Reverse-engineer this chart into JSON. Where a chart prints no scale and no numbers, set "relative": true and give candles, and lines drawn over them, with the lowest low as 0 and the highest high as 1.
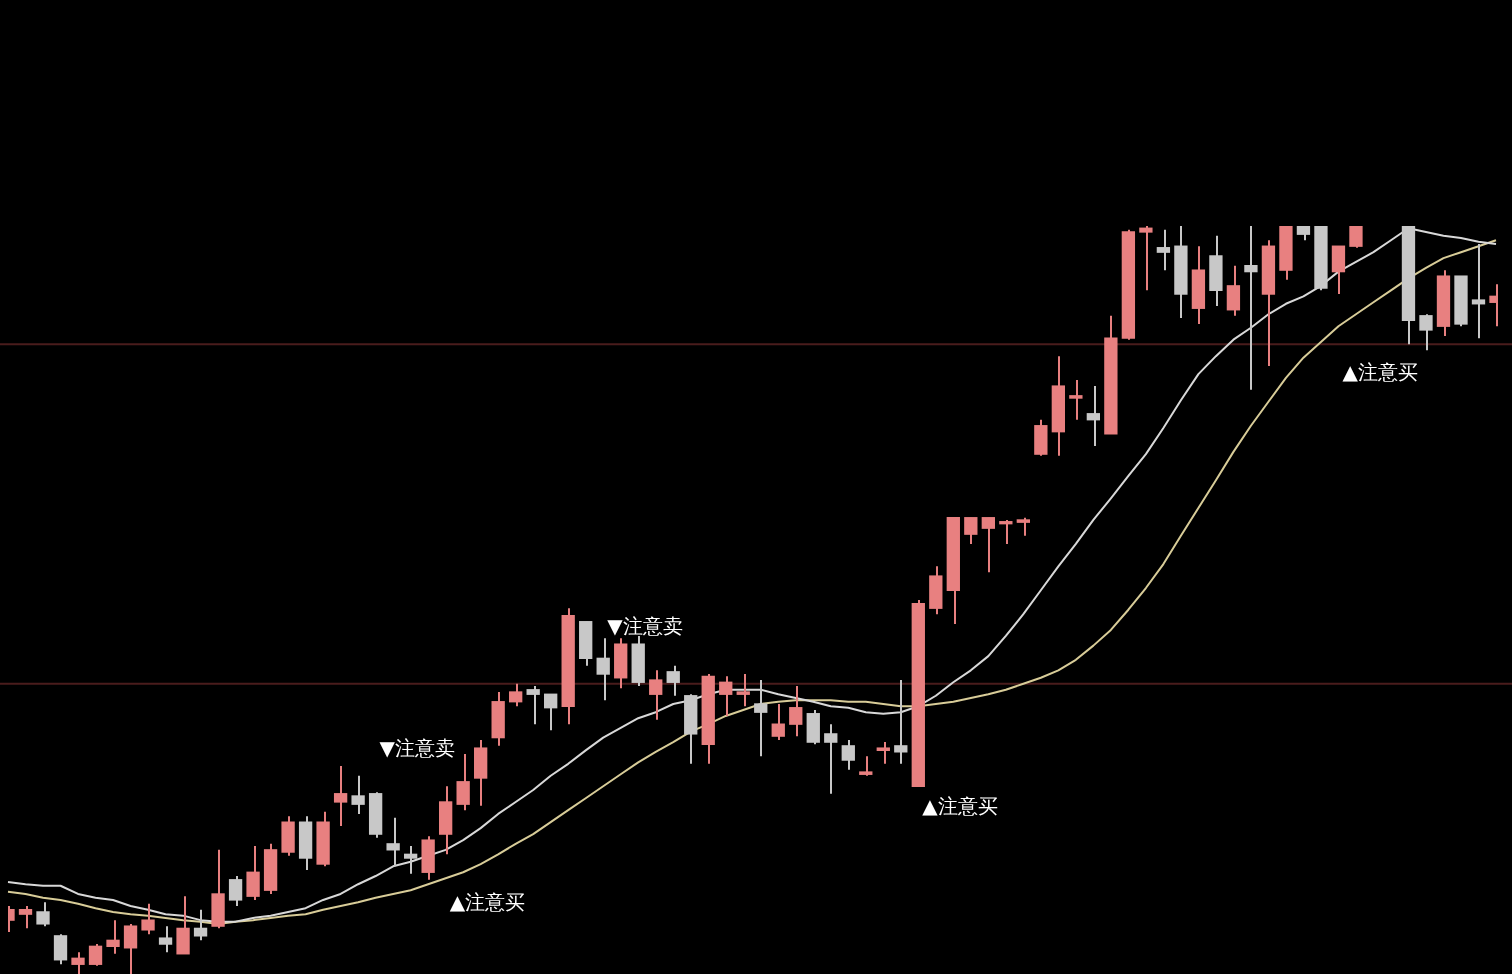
{
  "chart_data": {
    "type": "candlestick",
    "relative": true,
    "categories": [
      null,
      null,
      null,
      null,
      null,
      null,
      null,
      null,
      null,
      null,
      null,
      null,
      null,
      null,
      null,
      null,
      null,
      null,
      null,
      null,
      null,
      null,
      null,
      null,
      null,
      null,
      null,
      null,
      null,
      null,
      null,
      null,
      null,
      null,
      null,
      null,
      null,
      null,
      null,
      null,
      null,
      null,
      null,
      null,
      null,
      null,
      null,
      null,
      null,
      null,
      null,
      null,
      null,
      null,
      null,
      null,
      null,
      null,
      null,
      null,
      null,
      null,
      null,
      null,
      null,
      null,
      null,
      null,
      null,
      null,
      null,
      null,
      null,
      null,
      null,
      null,
      null,
      null,
      null,
      null,
      null,
      null,
      null,
      null,
      null,
      null
    ],
    "ohlc": [
      [
        0.072,
        0.091,
        0.056,
        0.086
      ],
      [
        0.08,
        0.091,
        0.061,
        0.086
      ],
      [
        0.083,
        0.096,
        0.064,
        0.067
      ],
      [
        0.051,
        0.053,
        0.013,
        0.019
      ],
      [
        0.013,
        0.029,
        0,
        0.021
      ],
      [
        0.013,
        0.04,
        0.011,
        0.037
      ],
      [
        0.037,
        0.072,
        0.027,
        0.045
      ],
      [
        0.035,
        0.067,
        0,
        0.064
      ],
      [
        0.059,
        0.094,
        0.053,
        0.072
      ],
      [
        0.048,
        0.064,
        0.029,
        0.04
      ],
      [
        0.027,
        0.104,
        0.027,
        0.061
      ],
      [
        0.061,
        0.086,
        0.045,
        0.051
      ],
      [
        0.064,
        0.166,
        0.061,
        0.107
      ],
      [
        0.126,
        0.131,
        0.091,
        0.099
      ],
      [
        0.104,
        0.171,
        0.099,
        0.136
      ],
      [
        0.112,
        0.174,
        0.107,
        0.166
      ],
      [
        0.163,
        0.211,
        0.158,
        0.203
      ],
      [
        0.203,
        0.211,
        0.139,
        0.155
      ],
      [
        0.147,
        0.217,
        0.144,
        0.203
      ],
      [
        0.23,
        0.278,
        0.198,
        0.241
      ],
      [
        0.238,
        0.265,
        0.214,
        0.227
      ],
      [
        0.241,
        0.243,
        0.182,
        0.187
      ],
      [
        0.174,
        0.209,
        0.144,
        0.166
      ],
      [
        0.16,
        0.171,
        0.134,
        0.155
      ],
      [
        0.136,
        0.184,
        0.126,
        0.179
      ],
      [
        0.187,
        0.251,
        0.16,
        0.23
      ],
      [
        0.227,
        0.294,
        0.219,
        0.257
      ],
      [
        0.262,
        0.313,
        0.225,
        0.302
      ],
      [
        0.316,
        0.377,
        0.305,
        0.364
      ],
      [
        0.364,
        0.388,
        0.358,
        0.377
      ],
      [
        0.38,
        0.385,
        0.334,
        0.374
      ],
      [
        0.374,
        0.374,
        0.326,
        0.356
      ],
      [
        0.358,
        0.489,
        0.334,
        0.479
      ],
      [
        0.471,
        0.471,
        0.412,
        0.422
      ],
      [
        0.422,
        0.449,
        0.366,
        0.401
      ],
      [
        0.396,
        0.449,
        0.382,
        0.441
      ],
      [
        0.441,
        0.452,
        0.385,
        0.39
      ],
      [
        0.374,
        0.406,
        0.34,
        0.393
      ],
      [
        0.404,
        0.412,
        0.372,
        0.39
      ],
      [
        0.372,
        0.374,
        0.281,
        0.321
      ],
      [
        0.307,
        0.401,
        0.281,
        0.398
      ],
      [
        0.374,
        0.398,
        0.345,
        0.39
      ],
      [
        0.374,
        0.401,
        0.358,
        0.377
      ],
      [
        0.361,
        0.393,
        0.291,
        0.35
      ],
      [
        0.318,
        0.361,
        0.313,
        0.334
      ],
      [
        0.334,
        0.385,
        0.318,
        0.356
      ],
      [
        0.348,
        0.353,
        0.307,
        0.31
      ],
      [
        0.321,
        0.334,
        0.241,
        0.31
      ],
      [
        0.305,
        0.313,
        0.273,
        0.286
      ],
      [
        0.267,
        0.291,
        0.265,
        0.27
      ],
      [
        0.299,
        0.31,
        0.281,
        0.302
      ],
      [
        0.305,
        0.393,
        0.281,
        0.297
      ],
      [
        0.251,
        0.5,
        0.251,
        0.495
      ],
      [
        0.489,
        0.545,
        0.481,
        0.532
      ],
      [
        0.513,
        0.61,
        0.468,
        0.61
      ],
      [
        0.588,
        0.61,
        0.575,
        0.61
      ],
      [
        0.596,
        0.61,
        0.537,
        0.61
      ],
      [
        0.602,
        0.607,
        0.575,
        0.604
      ],
      [
        0.604,
        0.61,
        0.586,
        0.607
      ],
      [
        0.695,
        0.741,
        0.693,
        0.733
      ],
      [
        0.725,
        0.826,
        0.693,
        0.786
      ],
      [
        0.77,
        0.794,
        0.741,
        0.773
      ],
      [
        0.749,
        0.786,
        0.706,
        0.741
      ],
      [
        0.722,
        0.88,
        0.722,
        0.85
      ],
      [
        0.85,
        0.995,
        0.848,
        0.992
      ],
      [
        0.992,
        1,
        0.914,
        0.997
      ],
      [
        0.971,
        0.995,
        0.941,
        0.965
      ],
      [
        0.973,
        1,
        0.877,
        0.909
      ],
      [
        0.89,
        0.973,
        0.869,
        0.941
      ],
      [
        0.96,
        0.987,
        0.893,
        0.914
      ],
      [
        0.888,
        0.947,
        0.88,
        0.92
      ],
      [
        0.947,
        1,
        0.781,
        0.939
      ],
      [
        0.909,
        0.981,
        0.813,
        0.973
      ],
      [
        0.941,
        1,
        0.928,
        1
      ],
      [
        1,
        1,
        0.981,
        0.989
      ],
      [
        1,
        1,
        0.914,
        0.917
      ],
      [
        0.939,
        0.973,
        0.909,
        0.973
      ],
      [
        0.973,
        1,
        0.971,
        1
      ],
      null,
      null,
      [
        1,
        1,
        0.842,
        0.874
      ],
      [
        0.88,
        0.882,
        0.834,
        0.861
      ],
      [
        0.866,
        0.941,
        0.853,
        0.933
      ],
      [
        0.933,
        0.933,
        0.866,
        0.869
      ],
      [
        0.901,
        0.976,
        0.85,
        0.896
      ],
      [
        0.898,
        0.922,
        0.866,
        0.906
      ]
    ],
    "colors": [
      "#e88080",
      "#e88080",
      "#c8c8c8",
      "#c8c8c8",
      "#e88080",
      "#e88080",
      "#e88080",
      "#e88080",
      "#e88080",
      "#c8c8c8",
      "#e88080",
      "#c8c8c8",
      "#e88080",
      "#c8c8c8",
      "#e88080",
      "#e88080",
      "#e88080",
      "#c8c8c8",
      "#e88080",
      "#e88080",
      "#c8c8c8",
      "#c8c8c8",
      "#c8c8c8",
      "#c8c8c8",
      "#e88080",
      "#e88080",
      "#e88080",
      "#e88080",
      "#e88080",
      "#e88080",
      "#c8c8c8",
      "#c8c8c8",
      "#e88080",
      "#c8c8c8",
      "#c8c8c8",
      "#e88080",
      "#c8c8c8",
      "#e88080",
      "#c8c8c8",
      "#c8c8c8",
      "#e88080",
      "#e88080",
      "#e88080",
      "#c8c8c8",
      "#e88080",
      "#e88080",
      "#c8c8c8",
      "#c8c8c8",
      "#c8c8c8",
      "#e88080",
      "#e88080",
      "#c8c8c8",
      "#e88080",
      "#e88080",
      "#e88080",
      "#e88080",
      "#e88080",
      "#e88080",
      "#e88080",
      "#e88080",
      "#e88080",
      "#e88080",
      "#c8c8c8",
      "#e88080",
      "#e88080",
      "#e88080",
      "#c8c8c8",
      "#c8c8c8",
      "#e88080",
      "#c8c8c8",
      "#e88080",
      "#c8c8c8",
      "#e88080",
      "#e88080",
      "#c8c8c8",
      "#c8c8c8",
      "#e88080",
      "#e88080",
      null,
      null,
      "#c8c8c8",
      "#c8c8c8",
      "#e88080",
      "#c8c8c8",
      "#c8c8c8",
      "#e88080"
    ],
    "series": [
      {
        "type": "line",
        "color": "#d8d8d8",
        "values": [
          0.123,
          0.12,
          0.118,
          0.118,
          0.107,
          0.102,
          0.099,
          0.091,
          0.086,
          0.08,
          0.078,
          0.072,
          0.07,
          0.07,
          0.075,
          0.078,
          0.083,
          0.088,
          0.099,
          0.107,
          0.12,
          0.131,
          0.144,
          0.15,
          0.158,
          0.166,
          0.179,
          0.195,
          0.214,
          0.23,
          0.246,
          0.265,
          0.281,
          0.299,
          0.316,
          0.329,
          0.342,
          0.35,
          0.361,
          0.366,
          0.374,
          0.38,
          0.38,
          0.38,
          0.374,
          0.369,
          0.364,
          0.358,
          0.356,
          0.35,
          0.348,
          0.35,
          0.358,
          0.372,
          0.39,
          0.406,
          0.425,
          0.452,
          0.481,
          0.513,
          0.545,
          0.575,
          0.607,
          0.636,
          0.666,
          0.695,
          0.73,
          0.767,
          0.802,
          0.826,
          0.848,
          0.864,
          0.882,
          0.896,
          0.906,
          0.92,
          0.939,
          0.952,
          0.965,
          0.981,
          0.997,
          0.992,
          0.987,
          0.984,
          0.979,
          0.976
        ]
      },
      {
        "type": "line",
        "color": "#d8cc98",
        "values": [
          0.11,
          0.107,
          0.102,
          0.099,
          0.094,
          0.088,
          0.083,
          0.08,
          0.078,
          0.075,
          0.072,
          0.07,
          0.067,
          0.07,
          0.072,
          0.075,
          0.078,
          0.08,
          0.086,
          0.091,
          0.096,
          0.102,
          0.107,
          0.112,
          0.12,
          0.128,
          0.136,
          0.147,
          0.16,
          0.174,
          0.187,
          0.203,
          0.219,
          0.235,
          0.251,
          0.267,
          0.283,
          0.297,
          0.31,
          0.324,
          0.334,
          0.345,
          0.353,
          0.361,
          0.364,
          0.366,
          0.366,
          0.366,
          0.364,
          0.364,
          0.361,
          0.358,
          0.358,
          0.361,
          0.364,
          0.369,
          0.374,
          0.38,
          0.388,
          0.396,
          0.406,
          0.42,
          0.439,
          0.46,
          0.487,
          0.516,
          0.548,
          0.586,
          0.623,
          0.66,
          0.698,
          0.733,
          0.765,
          0.797,
          0.824,
          0.845,
          0.866,
          0.882,
          0.898,
          0.914,
          0.93,
          0.944,
          0.957,
          0.965,
          0.973,
          0.981
        ]
      }
    ],
    "ref_lines": [
      {
        "axis": "y",
        "value": 0.842,
        "color": "#4a1c1c"
      },
      {
        "axis": "y",
        "value": 0.388,
        "color": "#4a1c1c"
      }
    ],
    "annotations": [
      "▼注意卖",
      "▲注意买",
      "▼注意卖",
      "▲注意买",
      "▲注意买"
    ]
  }
}
